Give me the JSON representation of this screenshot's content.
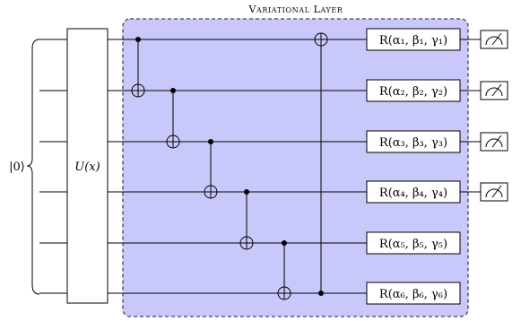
{
  "layer_title": "Variational Layer",
  "input_state": "|0⟩",
  "encoding_gate": "U(x)",
  "qubits": [
    {
      "rotation": "R(α₁, β₁, γ₁)",
      "measured": true
    },
    {
      "rotation": "R(α₂, β₂, γ₂)",
      "measured": true
    },
    {
      "rotation": "R(α₃, β₃, γ₃)",
      "measured": true
    },
    {
      "rotation": "R(α₄, β₄, γ₄)",
      "measured": true
    },
    {
      "rotation": "R(α₅, β₅, γ₅)",
      "measured": false
    },
    {
      "rotation": "R(α₆, β₆, γ₆)",
      "measured": false
    }
  ],
  "cnots": [
    {
      "control": 1,
      "target": 2
    },
    {
      "control": 2,
      "target": 3
    },
    {
      "control": 3,
      "target": 4
    },
    {
      "control": 4,
      "target": 5
    },
    {
      "control": 5,
      "target": 6
    },
    {
      "control": 6,
      "target": 1
    }
  ],
  "colors": {
    "layer_fill": "#c8c8fa",
    "layer_border": "#404060",
    "wire": "#000000",
    "box_fill": "#ffffff"
  }
}
